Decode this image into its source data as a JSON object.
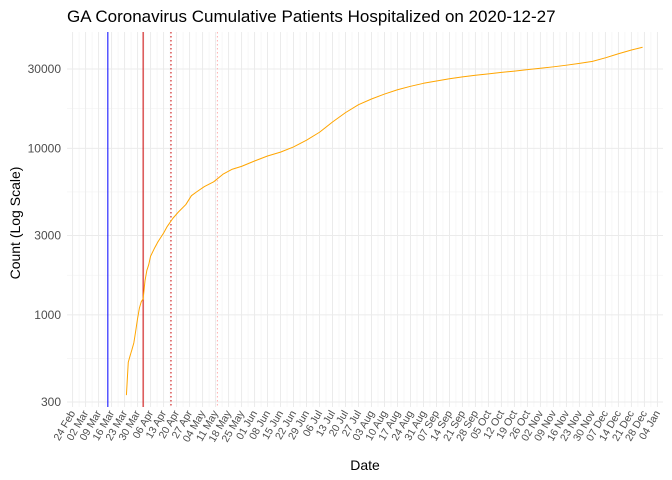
{
  "chart_data": {
    "type": "line",
    "title": "GA Coronavirus Cumulative Patients Hospitalized on 2020-12-27",
    "xlabel": "Date",
    "ylabel": "Count (Log Scale)",
    "y_scale": "log10",
    "ylim": [
      280,
      50000
    ],
    "xlim": [
      "2020-02-21",
      "2021-01-07"
    ],
    "yticks": [
      300,
      1000,
      3000,
      10000,
      30000
    ],
    "ytick_labels": [
      "300",
      "1000",
      "3000",
      "10000",
      "30000"
    ],
    "xticks": [
      "2020-02-24",
      "2020-03-02",
      "2020-03-09",
      "2020-03-16",
      "2020-03-23",
      "2020-03-30",
      "2020-04-06",
      "2020-04-13",
      "2020-04-20",
      "2020-04-27",
      "2020-05-04",
      "2020-05-11",
      "2020-05-18",
      "2020-05-25",
      "2020-06-01",
      "2020-06-08",
      "2020-06-15",
      "2020-06-22",
      "2020-06-29",
      "2020-07-06",
      "2020-07-13",
      "2020-07-20",
      "2020-07-27",
      "2020-08-03",
      "2020-08-10",
      "2020-08-17",
      "2020-08-24",
      "2020-08-31",
      "2020-09-07",
      "2020-09-14",
      "2020-09-21",
      "2020-09-28",
      "2020-10-05",
      "2020-10-12",
      "2020-10-19",
      "2020-10-26",
      "2020-11-02",
      "2020-11-09",
      "2020-11-16",
      "2020-11-23",
      "2020-11-30",
      "2020-12-07",
      "2020-12-14",
      "2020-12-21",
      "2020-12-28",
      "2021-01-04"
    ],
    "xtick_labels": [
      "24 Feb",
      "02 Mar",
      "09 Mar",
      "16 Mar",
      "23 Mar",
      "30 Mar",
      "06 Apr",
      "13 Apr",
      "20 Apr",
      "27 Apr",
      "04 May",
      "11 May",
      "18 May",
      "25 May",
      "01 Jun",
      "08 Jun",
      "15 Jun",
      "22 Jun",
      "29 Jun",
      "06 Jul",
      "13 Jul",
      "20 Jul",
      "27 Jul",
      "03 Aug",
      "10 Aug",
      "17 Aug",
      "24 Aug",
      "31 Aug",
      "07 Sep",
      "14 Sep",
      "21 Sep",
      "28 Sep",
      "05 Oct",
      "12 Oct",
      "19 Oct",
      "26 Oct",
      "02 Nov",
      "09 Nov",
      "16 Nov",
      "23 Nov",
      "30 Nov",
      "07 Dec",
      "14 Dec",
      "21 Dec",
      "28 Dec",
      "04 Jan"
    ],
    "grid": true,
    "vlines": [
      {
        "date": "2020-03-14",
        "color": "#0000ff",
        "style": "solid"
      },
      {
        "date": "2020-04-02",
        "color": "#cc0000",
        "style": "solid"
      },
      {
        "date": "2020-04-17",
        "color": "#cc0000",
        "style": "dotted"
      },
      {
        "date": "2020-05-12",
        "color": "#ffb0b0",
        "style": "dotted"
      }
    ],
    "series": [
      {
        "color": "#ffa500",
        "points": [
          [
            "2020-03-24",
            330
          ],
          [
            "2020-03-25",
            520
          ],
          [
            "2020-03-26",
            570
          ],
          [
            "2020-03-27",
            620
          ],
          [
            "2020-03-28",
            680
          ],
          [
            "2020-03-29",
            800
          ],
          [
            "2020-03-30",
            950
          ],
          [
            "2020-03-31",
            1100
          ],
          [
            "2020-04-01",
            1200
          ],
          [
            "2020-04-02",
            1250
          ],
          [
            "2020-04-03",
            1600
          ],
          [
            "2020-04-04",
            1850
          ],
          [
            "2020-04-05",
            2000
          ],
          [
            "2020-04-06",
            2250
          ],
          [
            "2020-04-08",
            2500
          ],
          [
            "2020-04-10",
            2750
          ],
          [
            "2020-04-13",
            3100
          ],
          [
            "2020-04-15",
            3400
          ],
          [
            "2020-04-18",
            3800
          ],
          [
            "2020-04-21",
            4150
          ],
          [
            "2020-04-25",
            4600
          ],
          [
            "2020-04-28",
            5200
          ],
          [
            "2020-05-01",
            5500
          ],
          [
            "2020-05-05",
            5900
          ],
          [
            "2020-05-10",
            6300
          ],
          [
            "2020-05-15",
            7000
          ],
          [
            "2020-05-20",
            7500
          ],
          [
            "2020-05-25",
            7800
          ],
          [
            "2020-06-01",
            8400
          ],
          [
            "2020-06-08",
            9000
          ],
          [
            "2020-06-15",
            9500
          ],
          [
            "2020-06-22",
            10200
          ],
          [
            "2020-06-29",
            11200
          ],
          [
            "2020-07-06",
            12500
          ],
          [
            "2020-07-13",
            14400
          ],
          [
            "2020-07-20",
            16400
          ],
          [
            "2020-07-27",
            18300
          ],
          [
            "2020-08-03",
            19800
          ],
          [
            "2020-08-10",
            21200
          ],
          [
            "2020-08-17",
            22500
          ],
          [
            "2020-08-24",
            23600
          ],
          [
            "2020-08-31",
            24600
          ],
          [
            "2020-09-07",
            25400
          ],
          [
            "2020-09-14",
            26200
          ],
          [
            "2020-09-21",
            26900
          ],
          [
            "2020-09-28",
            27500
          ],
          [
            "2020-10-05",
            28000
          ],
          [
            "2020-10-12",
            28600
          ],
          [
            "2020-10-19",
            29100
          ],
          [
            "2020-10-26",
            29700
          ],
          [
            "2020-11-02",
            30300
          ],
          [
            "2020-11-09",
            30900
          ],
          [
            "2020-11-16",
            31600
          ],
          [
            "2020-11-23",
            32400
          ],
          [
            "2020-11-30",
            33300
          ],
          [
            "2020-12-07",
            35000
          ],
          [
            "2020-12-14",
            37000
          ],
          [
            "2020-12-21",
            39000
          ],
          [
            "2020-12-27",
            40500
          ]
        ]
      }
    ]
  }
}
